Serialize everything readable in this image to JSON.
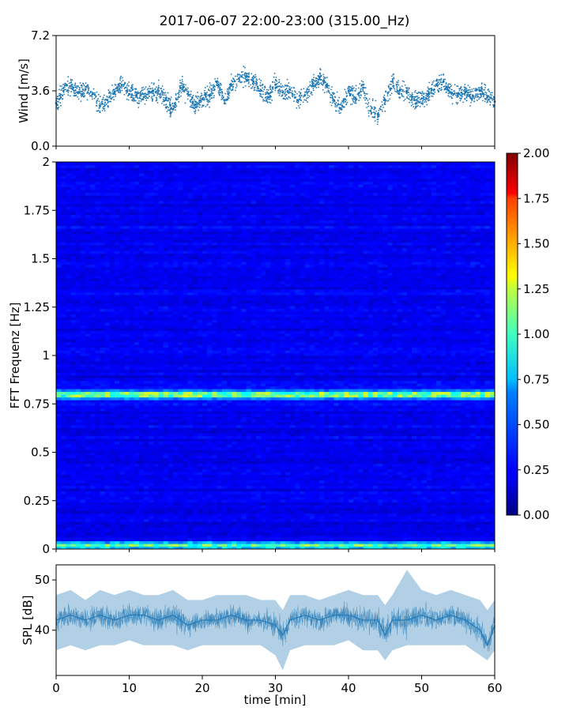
{
  "figure": {
    "title": "2017-06-07 22:00-23:00 (315.00_Hz)"
  },
  "chart_data": [
    {
      "id": "wind",
      "type": "scatter",
      "ylabel": "Wind [m/s]",
      "xlim": [
        0,
        60
      ],
      "ylim": [
        0,
        7.2
      ],
      "yticks": [
        0.0,
        3.6,
        7.2
      ],
      "ytick_labels": [
        "0.0",
        "3.6",
        "7.2"
      ],
      "color": "#1f77b4",
      "x": [
        0,
        1,
        2,
        3,
        4,
        5,
        6,
        7,
        8,
        9,
        10,
        11,
        12,
        13,
        14,
        15,
        16,
        17,
        18,
        19,
        20,
        21,
        22,
        23,
        24,
        25,
        26,
        27,
        28,
        29,
        30,
        31,
        32,
        33,
        34,
        35,
        36,
        37,
        38,
        39,
        40,
        41,
        42,
        43,
        44,
        45,
        46,
        47,
        48,
        49,
        50,
        51,
        52,
        53,
        54,
        55,
        56,
        57,
        58,
        59,
        60
      ],
      "y": [
        2.8,
        3.6,
        3.9,
        3.5,
        3.7,
        3.4,
        2.6,
        3.0,
        3.5,
        4.0,
        3.4,
        3.3,
        3.2,
        3.5,
        3.6,
        3.0,
        2.4,
        3.8,
        3.4,
        2.7,
        3.1,
        3.3,
        4.2,
        3.0,
        4.0,
        4.4,
        4.5,
        4.2,
        3.6,
        3.2,
        4.0,
        3.5,
        3.7,
        3.0,
        3.3,
        3.9,
        4.5,
        4.0,
        3.0,
        2.4,
        3.6,
        3.1,
        3.8,
        2.3,
        2.1,
        3.0,
        4.2,
        3.6,
        3.5,
        3.0,
        3.1,
        3.4,
        4.0,
        4.2,
        3.5,
        3.4,
        3.5,
        3.3,
        3.6,
        3.2,
        2.9
      ]
    },
    {
      "id": "spectrogram",
      "type": "heatmap",
      "ylabel": "FFT Frequenz [Hz]",
      "xlim": [
        0,
        60
      ],
      "ylim": [
        0,
        2
      ],
      "yticks": [
        0,
        0.25,
        0.5,
        0.75,
        1,
        1.25,
        1.5,
        1.75,
        2
      ],
      "ytick_labels": [
        "0",
        "0.25",
        "0.5",
        "0.75",
        "1",
        "1.25",
        "1.5",
        "1.75",
        "2"
      ],
      "colormap": "jet",
      "colorbar": {
        "range": [
          0.0,
          2.0
        ],
        "ticks": [
          0.0,
          0.25,
          0.5,
          0.75,
          1.0,
          1.25,
          1.5,
          1.75,
          2.0
        ],
        "tick_labels": [
          "0.00",
          "0.25",
          "0.50",
          "0.75",
          "1.00",
          "1.25",
          "1.50",
          "1.75",
          "2.00"
        ]
      },
      "background_level": 0.22,
      "bands": [
        {
          "frequency": 0.8,
          "level": 1.15
        },
        {
          "frequency": 0.02,
          "level": 0.9
        }
      ]
    },
    {
      "id": "spl",
      "type": "line",
      "ylabel": "SPL [dB]",
      "xlabel": "time [min]",
      "xlim": [
        0,
        60
      ],
      "ylim": [
        31,
        53
      ],
      "xticks": [
        0,
        10,
        20,
        30,
        40,
        50,
        60
      ],
      "xtick_labels": [
        "0",
        "10",
        "20",
        "30",
        "40",
        "50",
        "60"
      ],
      "yticks": [
        40,
        50
      ],
      "ytick_labels": [
        "40",
        "50"
      ],
      "color": "#1f77b4",
      "x": [
        0,
        2,
        4,
        6,
        8,
        10,
        12,
        14,
        16,
        18,
        20,
        22,
        24,
        26,
        28,
        30,
        31,
        32,
        34,
        36,
        38,
        40,
        42,
        44,
        45,
        46,
        48,
        50,
        52,
        54,
        56,
        58,
        59,
        60
      ],
      "y": [
        42,
        43,
        42,
        43,
        42,
        43,
        43,
        42,
        43,
        41,
        42,
        42,
        43,
        42,
        42,
        41,
        39,
        42,
        43,
        42,
        43,
        43,
        42,
        42,
        39,
        42,
        42,
        43,
        42,
        43,
        42,
        40,
        37,
        41
      ],
      "y_low": [
        36,
        37,
        36,
        37,
        37,
        38,
        37,
        37,
        37,
        36,
        37,
        37,
        37,
        37,
        37,
        35,
        32,
        36,
        37,
        37,
        37,
        38,
        36,
        36,
        34,
        36,
        37,
        37,
        37,
        37,
        37,
        35,
        34,
        36
      ],
      "y_high": [
        47,
        48,
        46,
        48,
        47,
        48,
        47,
        47,
        48,
        46,
        46,
        47,
        47,
        47,
        46,
        46,
        44,
        47,
        47,
        46,
        47,
        48,
        47,
        47,
        45,
        47,
        52,
        48,
        47,
        48,
        47,
        46,
        44,
        46
      ]
    }
  ]
}
